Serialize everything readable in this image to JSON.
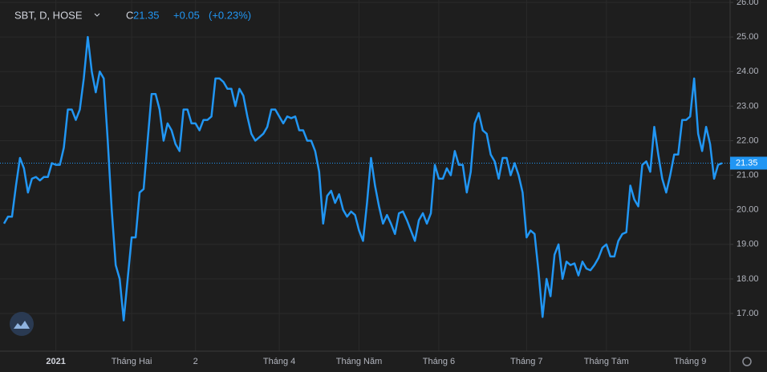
{
  "header": {
    "symbol": "SBT, D, HOSE",
    "close_prefix": "C",
    "close": "21.35",
    "change": "+0.05",
    "change_pct": "(+0.23%)"
  },
  "chart_data": {
    "type": "line",
    "categories": [
      null,
      null,
      null,
      null,
      null,
      null,
      null,
      null,
      null,
      null,
      null,
      null,
      null,
      "2021",
      null,
      null,
      null,
      null,
      null,
      null,
      null,
      null,
      null,
      null,
      null,
      null,
      null,
      null,
      null,
      null,
      null,
      null,
      "Tháng Hai",
      null,
      null,
      null,
      null,
      null,
      null,
      null,
      null,
      null,
      null,
      null,
      null,
      null,
      null,
      null,
      "2",
      null,
      null,
      null,
      null,
      null,
      null,
      null,
      null,
      null,
      null,
      null,
      null,
      null,
      null,
      null,
      null,
      null,
      null,
      null,
      null,
      "Tháng 4",
      null,
      null,
      null,
      null,
      null,
      null,
      null,
      null,
      null,
      null,
      null,
      null,
      null,
      null,
      null,
      null,
      null,
      null,
      null,
      "Tháng Năm",
      null,
      null,
      null,
      null,
      null,
      null,
      null,
      null,
      null,
      null,
      null,
      null,
      null,
      null,
      null,
      null,
      null,
      null,
      null,
      "Tháng 6",
      null,
      null,
      null,
      null,
      null,
      null,
      null,
      null,
      null,
      null,
      null,
      null,
      null,
      null,
      null,
      null,
      null,
      null,
      null,
      null,
      null,
      "Tháng 7",
      null,
      null,
      null,
      null,
      null,
      null,
      null,
      null,
      null,
      null,
      null,
      null,
      null,
      null,
      null,
      null,
      null,
      null,
      null,
      "Tháng Tám",
      null,
      null,
      null,
      null,
      null,
      null,
      null,
      null,
      null,
      null,
      null,
      null,
      null,
      null,
      null,
      null,
      null,
      null,
      null,
      null,
      "Tháng 9",
      null,
      null,
      null,
      null,
      null,
      null,
      null,
      null
    ],
    "series": [
      {
        "name": "SBT",
        "color": "#2196f3",
        "values": [
          19.6,
          19.8,
          19.8,
          20.7,
          21.5,
          21.2,
          20.5,
          20.9,
          20.95,
          20.85,
          20.95,
          20.95,
          21.35,
          21.3,
          21.3,
          21.8,
          22.9,
          22.9,
          22.6,
          22.9,
          23.8,
          25.0,
          24.0,
          23.4,
          24.0,
          23.8,
          22.0,
          20.0,
          18.4,
          18.0,
          16.8,
          18.0,
          19.2,
          19.2,
          20.5,
          20.6,
          22.0,
          23.35,
          23.35,
          22.9,
          22.0,
          22.5,
          22.3,
          21.9,
          21.7,
          22.9,
          22.9,
          22.5,
          22.5,
          22.3,
          22.6,
          22.6,
          22.7,
          23.8,
          23.8,
          23.7,
          23.5,
          23.5,
          23.0,
          23.5,
          23.3,
          22.7,
          22.2,
          22.0,
          22.1,
          22.2,
          22.4,
          22.9,
          22.9,
          22.7,
          22.5,
          22.7,
          22.65,
          22.7,
          22.3,
          22.3,
          22.0,
          22.0,
          21.7,
          21.1,
          19.6,
          20.4,
          20.55,
          20.2,
          20.45,
          20.0,
          19.8,
          19.95,
          19.85,
          19.4,
          19.1,
          20.2,
          21.5,
          20.7,
          20.1,
          19.6,
          19.85,
          19.6,
          19.3,
          19.9,
          19.95,
          19.7,
          19.4,
          19.1,
          19.7,
          19.9,
          19.6,
          19.9,
          21.3,
          20.9,
          20.9,
          21.2,
          21.0,
          21.7,
          21.3,
          21.3,
          20.5,
          21.1,
          22.5,
          22.8,
          22.3,
          22.2,
          21.6,
          21.4,
          20.9,
          21.5,
          21.5,
          21.0,
          21.35,
          21.0,
          20.5,
          19.2,
          19.4,
          19.3,
          18.2,
          16.9,
          18.0,
          17.5,
          18.7,
          19.0,
          18.0,
          18.5,
          18.4,
          18.45,
          18.1,
          18.5,
          18.3,
          18.25,
          18.4,
          18.6,
          18.9,
          19.0,
          18.65,
          18.65,
          19.1,
          19.3,
          19.35,
          20.7,
          20.3,
          20.1,
          21.3,
          21.4,
          21.1,
          22.4,
          21.6,
          20.9,
          20.5,
          21.0,
          21.6,
          21.6,
          22.6,
          22.6,
          22.7,
          23.8,
          22.2,
          21.7,
          22.4,
          21.9,
          20.9,
          21.3,
          21.35
        ]
      }
    ],
    "ylim": [
      15.91,
      26.07
    ],
    "yticks": [
      {
        "value": 17,
        "label": "17.00"
      },
      {
        "value": 18,
        "label": "18.00"
      },
      {
        "value": 19,
        "label": "19.00"
      },
      {
        "value": 20,
        "label": "20.00"
      },
      {
        "value": 21,
        "label": "21.00"
      },
      {
        "value": 22,
        "label": "22.00"
      },
      {
        "value": 23,
        "label": "23.00"
      },
      {
        "value": 24,
        "label": "24.00"
      },
      {
        "value": 25,
        "label": "25.00"
      },
      {
        "value": 26,
        "label": "26.00"
      }
    ],
    "grid": true
  }
}
